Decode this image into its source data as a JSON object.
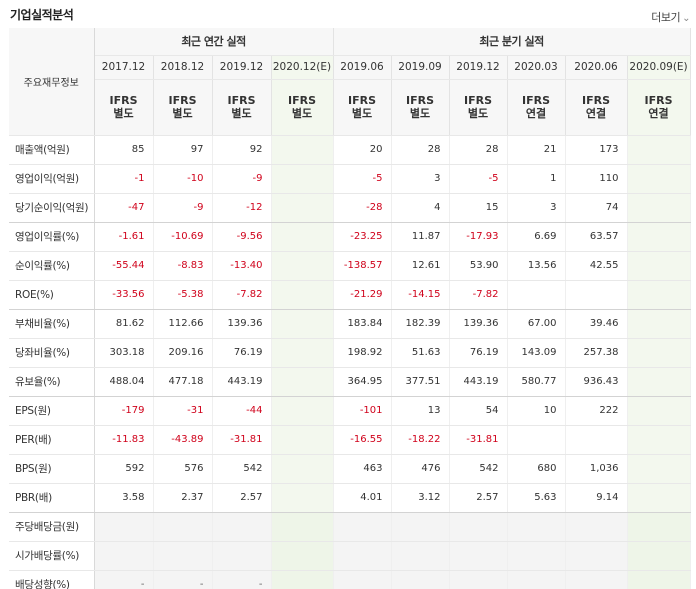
{
  "header": {
    "title": "기업실적분석",
    "more_label": "더보기",
    "more_icon": "chevron-down-icon"
  },
  "table": {
    "row_header_label": "주요재무정보",
    "annual_group_label": "최근 연간 실적",
    "quarter_group_label": "최근 분기 실적",
    "columns": [
      {
        "date": "2017.12",
        "basis_line1": "IFRS",
        "basis_line2": "별도"
      },
      {
        "date": "2018.12",
        "basis_line1": "IFRS",
        "basis_line2": "별도"
      },
      {
        "date": "2019.12",
        "basis_line1": "IFRS",
        "basis_line2": "별도"
      },
      {
        "date": "2020.12(E)",
        "basis_line1": "IFRS",
        "basis_line2": "별도"
      },
      {
        "date": "2019.06",
        "basis_line1": "IFRS",
        "basis_line2": "별도"
      },
      {
        "date": "2019.09",
        "basis_line1": "IFRS",
        "basis_line2": "별도"
      },
      {
        "date": "2019.12",
        "basis_line1": "IFRS",
        "basis_line2": "별도"
      },
      {
        "date": "2020.03",
        "basis_line1": "IFRS",
        "basis_line2": "연결"
      },
      {
        "date": "2020.06",
        "basis_line1": "IFRS",
        "basis_line2": "연결"
      },
      {
        "date": "2020.09(E)",
        "basis_line1": "IFRS",
        "basis_line2": "연결"
      }
    ],
    "rows": [
      {
        "label": "매출액(억원)",
        "values": [
          "85",
          "97",
          "92",
          "",
          "20",
          "28",
          "28",
          "21",
          "173",
          ""
        ]
      },
      {
        "label": "영업이익(억원)",
        "values": [
          "-1",
          "-10",
          "-9",
          "",
          "-5",
          "3",
          "-5",
          "1",
          "110",
          ""
        ]
      },
      {
        "label": "당기순이익(억원)",
        "values": [
          "-47",
          "-9",
          "-12",
          "",
          "-28",
          "4",
          "15",
          "3",
          "74",
          ""
        ]
      },
      {
        "label": "영업이익률(%)",
        "values": [
          "-1.61",
          "-10.69",
          "-9.56",
          "",
          "-23.25",
          "11.87",
          "-17.93",
          "6.69",
          "63.57",
          ""
        ]
      },
      {
        "label": "순이익률(%)",
        "values": [
          "-55.44",
          "-8.83",
          "-13.40",
          "",
          "-138.57",
          "12.61",
          "53.90",
          "13.56",
          "42.55",
          ""
        ]
      },
      {
        "label": "ROE(%)",
        "values": [
          "-33.56",
          "-5.38",
          "-7.82",
          "",
          "-21.29",
          "-14.15",
          "-7.82",
          "",
          "",
          ""
        ]
      },
      {
        "label": "부채비율(%)",
        "values": [
          "81.62",
          "112.66",
          "139.36",
          "",
          "183.84",
          "182.39",
          "139.36",
          "67.00",
          "39.46",
          ""
        ]
      },
      {
        "label": "당좌비율(%)",
        "values": [
          "303.18",
          "209.16",
          "76.19",
          "",
          "198.92",
          "51.63",
          "76.19",
          "143.09",
          "257.38",
          ""
        ]
      },
      {
        "label": "유보율(%)",
        "values": [
          "488.04",
          "477.18",
          "443.19",
          "",
          "364.95",
          "377.51",
          "443.19",
          "580.77",
          "936.43",
          ""
        ]
      },
      {
        "label": "EPS(원)",
        "values": [
          "-179",
          "-31",
          "-44",
          "",
          "-101",
          "13",
          "54",
          "10",
          "222",
          ""
        ]
      },
      {
        "label": "PER(배)",
        "values": [
          "-11.83",
          "-43.89",
          "-31.81",
          "",
          "-16.55",
          "-18.22",
          "-31.81",
          "",
          "",
          ""
        ]
      },
      {
        "label": "BPS(원)",
        "values": [
          "592",
          "576",
          "542",
          "",
          "463",
          "476",
          "542",
          "680",
          "1,036",
          ""
        ]
      },
      {
        "label": "PBR(배)",
        "values": [
          "3.58",
          "2.37",
          "2.57",
          "",
          "4.01",
          "3.12",
          "2.57",
          "5.63",
          "9.14",
          ""
        ]
      },
      {
        "label": "주당배당금(원)",
        "values": [
          "",
          "",
          "",
          "",
          "",
          "",
          "",
          "",
          "",
          ""
        ]
      },
      {
        "label": "시가배당률(%)",
        "values": [
          "",
          "",
          "",
          "",
          "",
          "",
          "",
          "",
          "",
          ""
        ]
      },
      {
        "label": "배당성향(%)",
        "values": [
          "-",
          "-",
          "-",
          "",
          "",
          "",
          "",
          "",
          "",
          ""
        ]
      }
    ],
    "colors": {
      "negative": "#d0021b",
      "ifrs_label": "#e0701b",
      "estimate_bg": "#f3f8ee",
      "header_bg": "#f7f7f7"
    }
  }
}
